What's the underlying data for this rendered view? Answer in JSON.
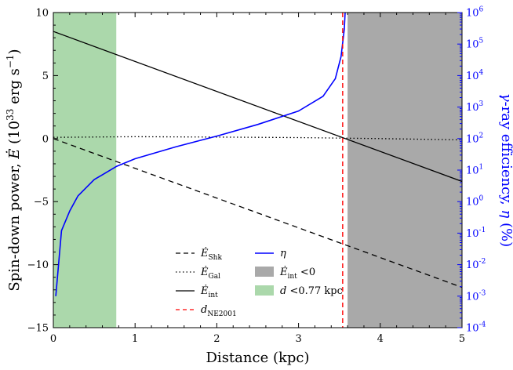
{
  "colors": {
    "eta": "#0000ff",
    "dne": "#ff0000",
    "gray_region": "#a9a9a9",
    "green_region": "#abd8ab",
    "black": "#000000"
  },
  "chart_data": {
    "type": "line",
    "xlabel": "Distance (kpc)",
    "ylabel_left": "Spin-down power, Ė (10^33 erg s^-1)",
    "ylabel_right": "γ-ray efficiency, η (%)",
    "xlim": [
      0,
      5
    ],
    "ylim_left": [
      -15,
      10
    ],
    "ylim_right_log10": [
      -4,
      6
    ],
    "grid": false,
    "legend_placement": "bottom-center",
    "x_ticks": [
      "0",
      "1",
      "2",
      "3",
      "4",
      "5"
    ],
    "y_ticks_left": [
      "−15",
      "−10",
      "−5",
      "0",
      "5",
      "10"
    ],
    "y_ticks_right": [
      "10",
      "10",
      "10",
      "10",
      "10",
      "10",
      "10",
      "10",
      "10",
      "10",
      "10"
    ],
    "y_ticks_right_exp": [
      "-4",
      "-3",
      "-2",
      "-1",
      "0",
      "1",
      "2",
      "3",
      "4",
      "5",
      "6"
    ],
    "series": [
      {
        "name": "Ė_Shk",
        "style": "dashed",
        "axis": "left",
        "x": [
          0,
          5
        ],
        "y": [
          0.0,
          -11.8
        ]
      },
      {
        "name": "Ė_Gal",
        "style": "dotted",
        "axis": "left",
        "x": [
          0,
          1,
          2,
          3,
          4,
          5
        ],
        "y": [
          0.1,
          0.15,
          0.12,
          0.08,
          0.0,
          -0.1
        ]
      },
      {
        "name": "Ė_int",
        "style": "solid",
        "axis": "left",
        "x": [
          0,
          5
        ],
        "y": [
          8.5,
          -3.4
        ]
      },
      {
        "name": "η",
        "style": "solid",
        "color": "blue",
        "axis": "right_log",
        "x": [
          0.03,
          0.1,
          0.2,
          0.3,
          0.5,
          0.77,
          1.0,
          1.5,
          2.0,
          2.5,
          3.0,
          3.3,
          3.45,
          3.52,
          3.56,
          3.57,
          3.58
        ],
        "y": [
          0.001,
          0.12,
          0.5,
          1.5,
          5.0,
          13.0,
          23.0,
          55.0,
          120.0,
          280.0,
          750.0,
          2200.0,
          8000.0,
          40000.0,
          300000.0,
          1000000.0,
          1000000.0
        ]
      }
    ],
    "vertical_lines": [
      {
        "name": "d_NE2001",
        "x": 3.54,
        "style": "dashed",
        "color": "red"
      }
    ],
    "regions": [
      {
        "name": "Ė_int < 0",
        "x": [
          3.6,
          5.0
        ],
        "color": "gray"
      },
      {
        "name": "d < 0.77 kpc",
        "x": [
          0.0,
          0.77
        ],
        "color": "green"
      }
    ],
    "legend": {
      "col1": [
        {
          "symbol": "Ė",
          "sub": "Shk",
          "style": "dashed"
        },
        {
          "symbol": "Ė",
          "sub": "Gal",
          "style": "dotted"
        },
        {
          "symbol": "Ė",
          "sub": "int",
          "style": "solid"
        },
        {
          "symbol": "d",
          "sub": "NE2001",
          "style": "red-dashed"
        }
      ],
      "col2": [
        {
          "symbol": "η",
          "sub": "",
          "suffix": "",
          "style": "blue-line"
        },
        {
          "symbol": "Ė",
          "sub": "int",
          "suffix": " <0",
          "style": "gray-box"
        },
        {
          "symbol": "d",
          "sub": "",
          "suffix": " <0.77 kpc",
          "style": "green-box"
        }
      ]
    }
  }
}
